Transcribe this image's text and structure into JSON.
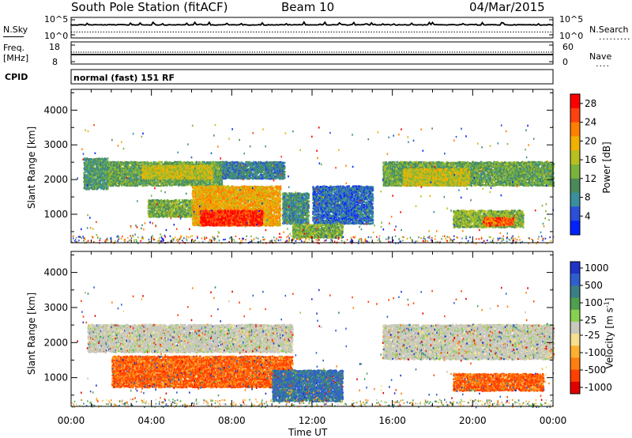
{
  "header": {
    "station_title": "South Pole Station (fitACF)",
    "beam": "Beam 10",
    "date": "04/Mar/2015"
  },
  "strip_panels": {
    "nsky_label": "N.Sky",
    "nsky_ticks": [
      "10^5",
      "10^0"
    ],
    "nsearch_label": "N.Search",
    "nsearch_ticks": [
      "10^5",
      "10^0"
    ],
    "freq_label_line1": "Freq.",
    "freq_label_line2": "[MHz]",
    "freq_ticks": [
      "18",
      "8"
    ],
    "nave_label": "Nave",
    "nave_ticks": [
      "60",
      "0"
    ],
    "cpid_label": "CPID",
    "cpid_text": "normal (fast) 151 RF"
  },
  "chart_data": [
    {
      "type": "heatmap",
      "title": "",
      "xlabel": "",
      "ylabel": "Slant Range [km]",
      "x_range_hours": [
        0,
        24
      ],
      "ylim": [
        180,
        4600
      ],
      "yticks": [
        1000,
        2000,
        3000,
        4000
      ],
      "colorbar_label": "Power [dB]",
      "colorbar_ticks": [
        4,
        8,
        12,
        16,
        20,
        24,
        28
      ],
      "colorbar_range": [
        0,
        30
      ],
      "colorbar_colors": [
        "#0022ff",
        "#2a4fd8",
        "#3a8f9e",
        "#4a8a5a",
        "#7ab33a",
        "#b8c020",
        "#f2b000",
        "#ff7f00",
        "#ff4010",
        "#ff0000"
      ],
      "data": {
        "bands": [
          {
            "t": [
              0.6,
              1.8
            ],
            "r": [
              1700,
              2600
            ],
            "v": 10
          },
          {
            "t": [
              1.8,
              7.5
            ],
            "r": [
              1800,
              2500
            ],
            "v": 12
          },
          {
            "t": [
              3.5,
              7.0
            ],
            "r": [
              2000,
              2400
            ],
            "v": 17
          },
          {
            "t": [
              7.5,
              10.6
            ],
            "r": [
              2000,
              2500
            ],
            "v": 8
          },
          {
            "t": [
              3.8,
              7.2
            ],
            "r": [
              900,
              1400
            ],
            "v": 13
          },
          {
            "t": [
              6.0,
              10.4
            ],
            "r": [
              650,
              1800
            ],
            "v": 20
          },
          {
            "t": [
              6.4,
              9.5
            ],
            "r": [
              650,
              1100
            ],
            "v": 27
          },
          {
            "t": [
              10.5,
              11.8
            ],
            "r": [
              700,
              1600
            ],
            "v": 9
          },
          {
            "t": [
              12.0,
              15.0
            ],
            "r": [
              700,
              1800
            ],
            "v": 6
          },
          {
            "t": [
              11.0,
              13.5
            ],
            "r": [
              300,
              700
            ],
            "v": 13
          },
          {
            "t": [
              15.5,
              24.0
            ],
            "r": [
              1800,
              2500
            ],
            "v": 12
          },
          {
            "t": [
              16.5,
              19.8
            ],
            "r": [
              1800,
              2300
            ],
            "v": 17
          },
          {
            "t": [
              19.0,
              22.5
            ],
            "r": [
              600,
              1100
            ],
            "v": 14
          },
          {
            "t": [
              20.5,
              22.0
            ],
            "r": [
              650,
              900
            ],
            "v": 24
          }
        ]
      }
    },
    {
      "type": "heatmap",
      "title": "",
      "xlabel": "Time UT",
      "ylabel": "Slant Range [km]",
      "x_range_hours": [
        0,
        24
      ],
      "xticks": [
        "00:00",
        "04:00",
        "08:00",
        "12:00",
        "16:00",
        "20:00",
        "00:00"
      ],
      "ylim": [
        180,
        4600
      ],
      "yticks": [
        1000,
        2000,
        3000,
        4000
      ],
      "colorbar_label": "Velocity [m s^-1]",
      "colorbar_ticks": [
        1000,
        500,
        100,
        25,
        -25,
        -100,
        -500,
        -1000
      ],
      "colorbar_colors": [
        "#2034c8",
        "#2f5fcf",
        "#3a7f86",
        "#4f9f50",
        "#88d04f",
        "#c8c8bc",
        "#f4e090",
        "#ffb030",
        "#ff8010",
        "#ff4000",
        "#e00000"
      ],
      "data": {
        "bands": [
          {
            "t": [
              0.8,
              11.0
            ],
            "r": [
              1700,
              2500
            ],
            "v": 0
          },
          {
            "t": [
              15.5,
              24.0
            ],
            "r": [
              1500,
              2500
            ],
            "v": 0
          },
          {
            "t": [
              2.0,
              11.0
            ],
            "r": [
              700,
              1600
            ],
            "v": -300
          },
          {
            "t": [
              10.0,
              13.5
            ],
            "r": [
              300,
              1200
            ],
            "v": 300
          },
          {
            "t": [
              19.0,
              23.5
            ],
            "r": [
              600,
              1100
            ],
            "v": -300
          }
        ]
      }
    }
  ]
}
